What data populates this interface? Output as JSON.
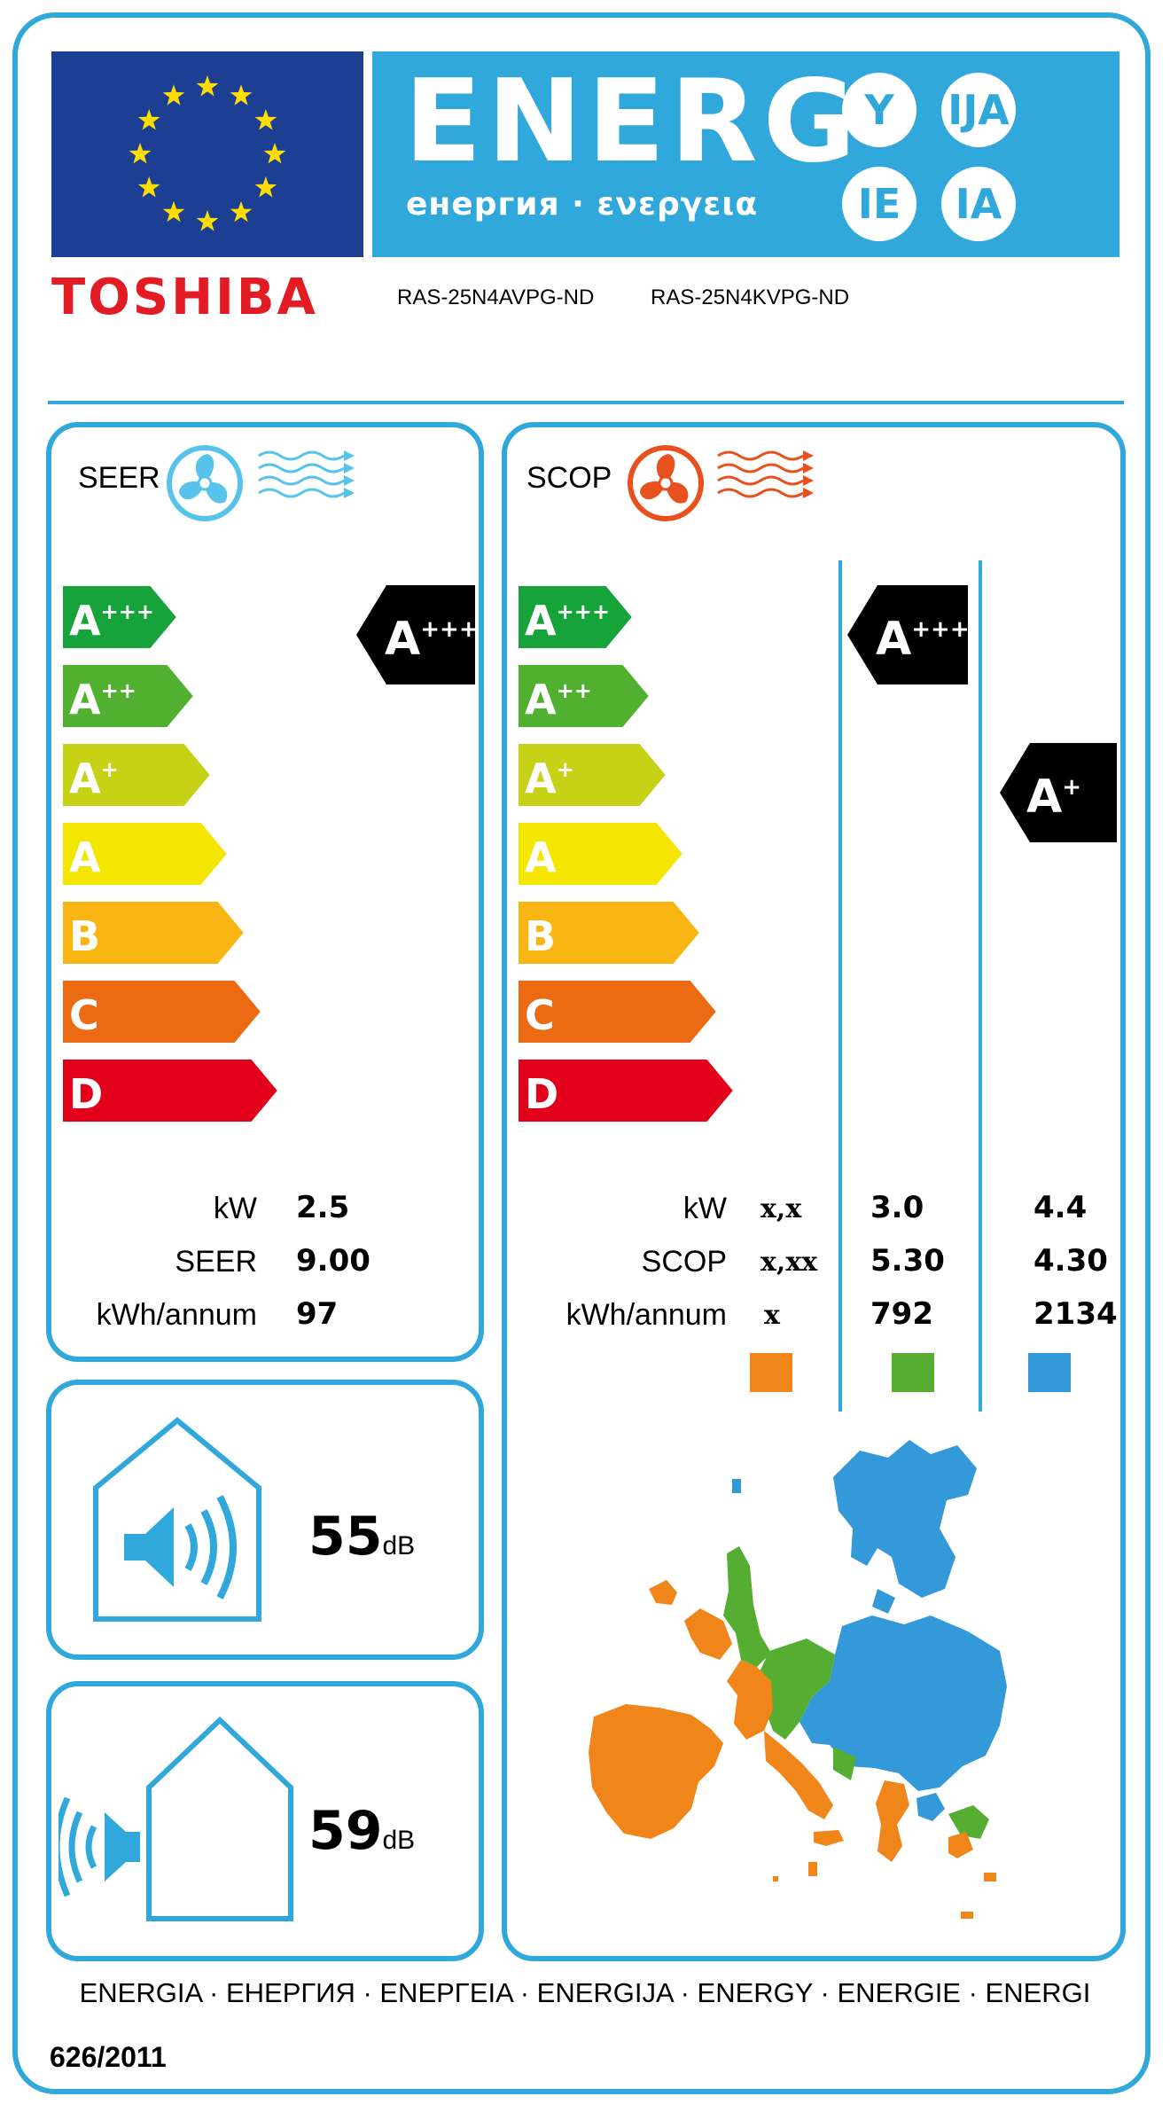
{
  "header": {
    "energy_word": "ENERG",
    "energy_subtitle": "енергия · ενεργεια",
    "suffixes": [
      "Y",
      "IJA",
      "IE",
      "IA"
    ]
  },
  "brand": "TOSHIBA",
  "models": [
    "RAS-25N4AVPG-ND",
    "RAS-25N4KVPG-ND"
  ],
  "classes": [
    "A+++",
    "A++",
    "A+",
    "A",
    "B",
    "C",
    "D"
  ],
  "colors": {
    "frame": "#31a8dc",
    "eu_blue": "#1c3f94",
    "eu_stars": "#ffdd00",
    "class_colors": [
      "#16a33a",
      "#52b030",
      "#c7d217",
      "#f5e600",
      "#f9b612",
      "#ec6a12",
      "#e3001b"
    ],
    "zone_warmer": "#f08519",
    "zone_average": "#55ad32",
    "zone_colder": "#3399d9",
    "toshiba_red": "#e31b23"
  },
  "seer": {
    "title": "SEER",
    "rating": "A+++",
    "rows": [
      {
        "label": "kW",
        "value": "2.5"
      },
      {
        "label": "SEER",
        "value": "9.00"
      },
      {
        "label": "kWh/annum",
        "value": "97"
      }
    ]
  },
  "scop": {
    "title": "SCOP",
    "labels": [
      "kW",
      "SCOP",
      "kWh/annum"
    ],
    "warmer": {
      "rating": "",
      "values": [
        "x,x",
        "x,xx",
        "x"
      ]
    },
    "average": {
      "rating": "A+++",
      "values": [
        "3.0",
        "5.30",
        "792"
      ]
    },
    "colder": {
      "rating": "A+",
      "values": [
        "4.4",
        "4.30",
        "2134"
      ]
    }
  },
  "noise": {
    "indoor": {
      "value": "55",
      "unit": "dB"
    },
    "outdoor": {
      "value": "59",
      "unit": "dB"
    }
  },
  "footer": {
    "languages": "ENERGIA · ЕНЕРГИЯ · ΕΝΕΡΓΕΙΑ · ENERGIJA · ENERGY · ENERGIE · ENERGI",
    "regulation": "626/2011"
  }
}
